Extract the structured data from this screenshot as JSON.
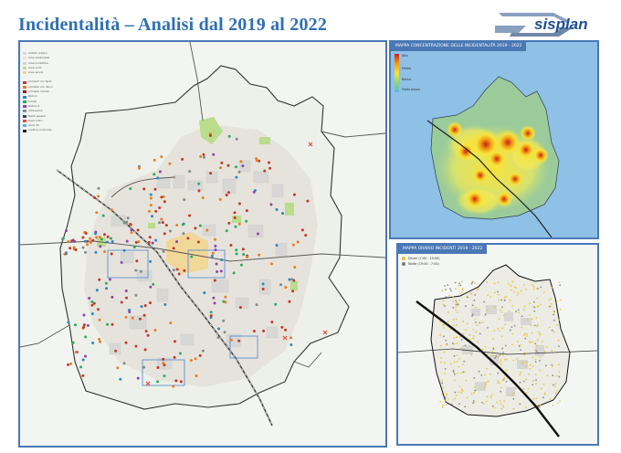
{
  "slide_title": "Incidentalità – Analisi dal 2019 al 2022",
  "logo": {
    "text": "sisplan",
    "color": "#1f4f94"
  },
  "colors": {
    "title": "#2f6fb4",
    "frame": "#4a78b5"
  },
  "main_map": {
    "legend": {
      "items": [
        {
          "label": "Ambito urbano",
          "color": "#d9d9d9"
        },
        {
          "label": "Aree residenziali",
          "color": "#e8e2c8"
        },
        {
          "label": "Aree produttive",
          "color": "#cfd3d8"
        },
        {
          "label": "Aree verdi",
          "color": "#b9dd8a"
        },
        {
          "label": "Aree servizi",
          "color": "#f2d58c"
        },
        {
          "label": "Incidenti con feriti",
          "color": "#c0392b"
        },
        {
          "label": "Incidenti con danni",
          "color": "#e67e22"
        },
        {
          "label": "Incidenti mortali",
          "color": "#8e1b1b"
        },
        {
          "label": "Pedoni",
          "color": "#2e86c1"
        },
        {
          "label": "Ciclisti",
          "color": "#27ae60"
        },
        {
          "label": "Motocicli",
          "color": "#8e44ad"
        },
        {
          "label": "Autoveicoli",
          "color": "#7f8c8d"
        },
        {
          "label": "Mezzi pesanti",
          "color": "#34495e"
        },
        {
          "label": "Punti critici",
          "color": "#e74c3c"
        },
        {
          "label": "Zone 30",
          "color": "#5dade2"
        },
        {
          "label": "Confine comunale",
          "color": "#222222"
        }
      ]
    }
  },
  "heat_map": {
    "title": "MAPPA CONCENTRAZIONE DELLE INCIDENTALITÀ 2019 - 2022",
    "legend": [
      "Alta",
      "Media",
      "Bassa",
      "Molto bassa"
    ]
  },
  "orari_map": {
    "title": "MAPPA ORARIO INCIDENTI 2019 - 2022",
    "legend": [
      {
        "label": "Diurni (7:00 - 19:00)",
        "color": "#e6c229"
      },
      {
        "label": "Notte (19:00 - 7:00)",
        "color": "#7a7a7a"
      }
    ]
  }
}
